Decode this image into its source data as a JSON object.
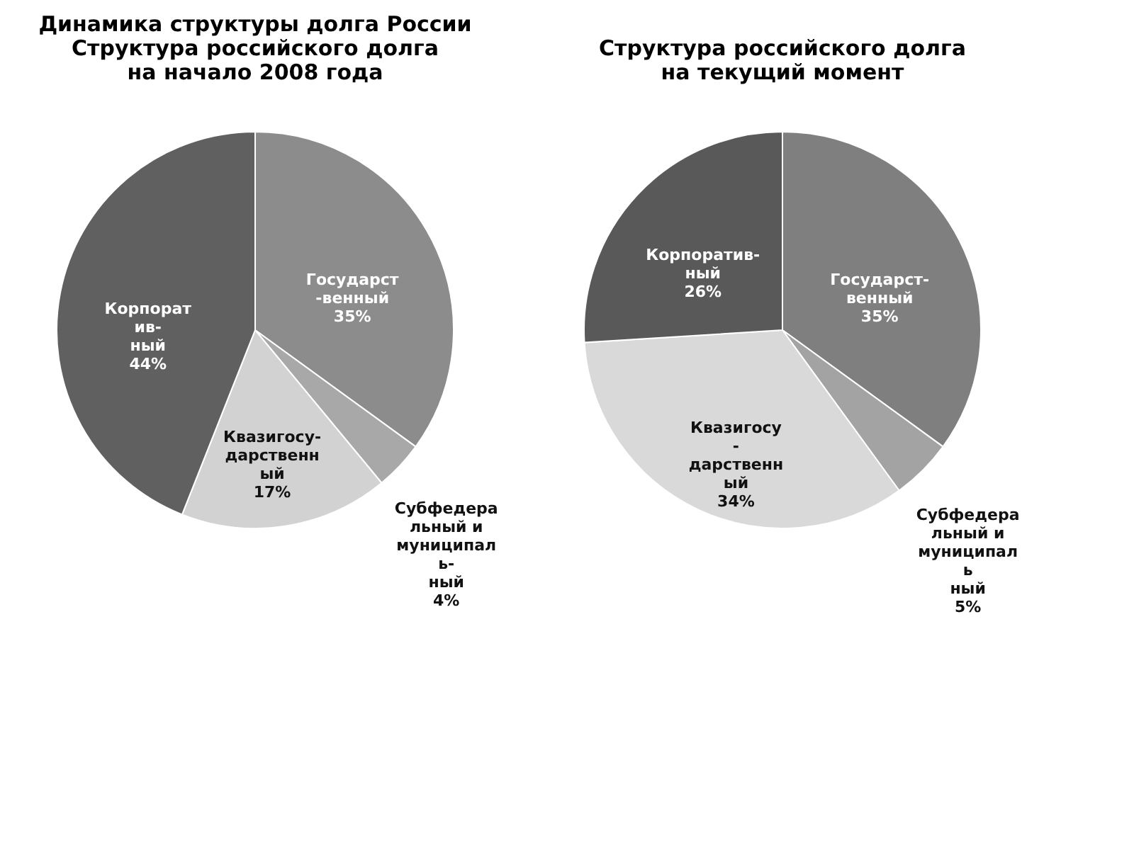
{
  "chart_data": [
    {
      "type": "pie",
      "title": "Динамика структуры долга России\nСтруктура российского долга\nна начало 2008 года",
      "categories": [
        "Государст\n-венный",
        "Субфедера\nльный и\nмуниципал\nь-\nный",
        "Квазигосу-\nдарственн\nый",
        "Корпорат\nив-\nный"
      ],
      "values": [
        35,
        4,
        17,
        44
      ],
      "value_labels": [
        "35%",
        "4%",
        "17%",
        "44%"
      ],
      "colors": [
        "#8c8c8c",
        "#a8a8a8",
        "#d2d2d2",
        "#606060"
      ],
      "legend": false
    },
    {
      "type": "pie",
      "title": "Структура российского долга\nна текущий момент",
      "categories": [
        "Государст-\nвенный",
        "Субфедера\nльный и\nмуниципал\nь\nный",
        "Квазигосу\n-\nдарственн\nый",
        "Корпоратив-\nный"
      ],
      "values": [
        35,
        5,
        34,
        26
      ],
      "value_labels": [
        "35%",
        "5%",
        "34%",
        "26%"
      ],
      "colors": [
        "#7f7f7f",
        "#a3a3a3",
        "#d9d9d9",
        "#595959"
      ],
      "legend": false
    }
  ]
}
